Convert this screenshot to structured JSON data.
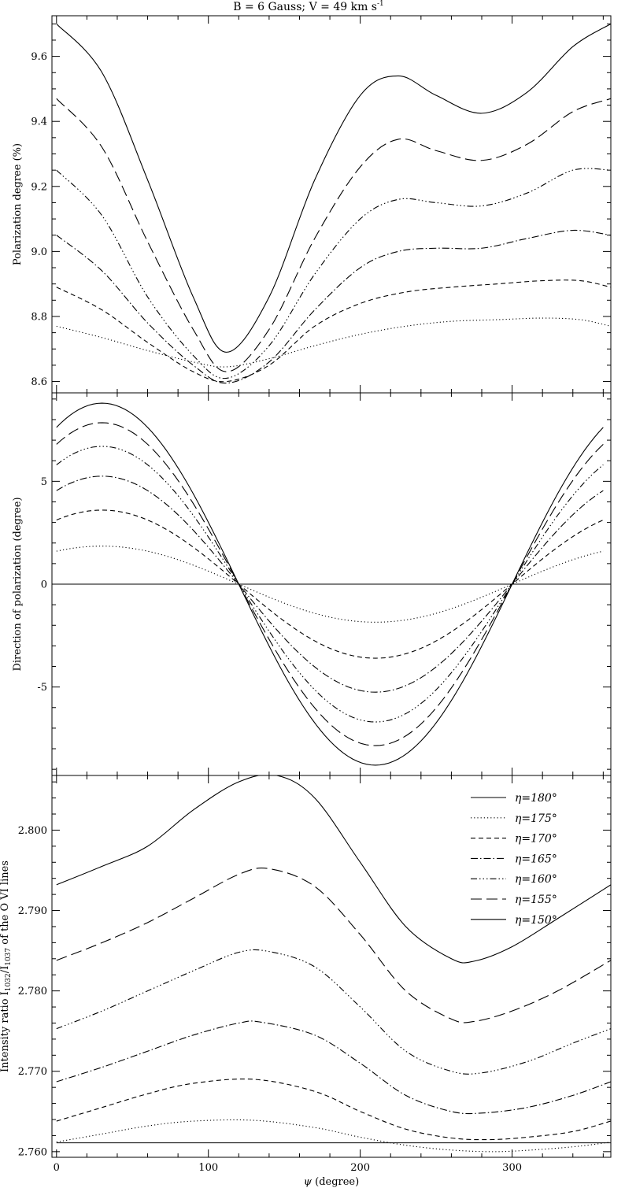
{
  "title": "B = 6 Gauss; V = 49 km s",
  "title_sup": "-1",
  "chart_data": [
    {
      "type": "line",
      "panel": "top",
      "ylabel": "Polarization degree (%)",
      "xlabel": "",
      "xlim": [
        -3,
        365
      ],
      "ylim": [
        8.565,
        9.725
      ],
      "xticks": [
        0,
        100,
        200,
        300
      ],
      "yticks": [
        8.6,
        8.8,
        9.0,
        9.2,
        9.4,
        9.6
      ],
      "ytick_labels": [
        "8.6",
        "8.8",
        "9.0",
        "9.2",
        "9.4",
        "9.6"
      ],
      "series": [
        {
          "name": "η=150°",
          "style": "solid",
          "points": [
            [
              0,
              9.7
            ],
            [
              30,
              9.55
            ],
            [
              60,
              9.22
            ],
            [
              90,
              8.86
            ],
            [
              112,
              8.69
            ],
            [
              140,
              8.86
            ],
            [
              170,
              9.22
            ],
            [
              200,
              9.48
            ],
            [
              225,
              9.54
            ],
            [
              250,
              9.48
            ],
            [
              280,
              9.425
            ],
            [
              310,
              9.49
            ],
            [
              340,
              9.63
            ],
            [
              365,
              9.7
            ]
          ]
        },
        {
          "name": "η=155°",
          "style": "long-dash",
          "points": [
            [
              0,
              9.47
            ],
            [
              30,
              9.32
            ],
            [
              60,
              9.03
            ],
            [
              90,
              8.76
            ],
            [
              112,
              8.63
            ],
            [
              140,
              8.76
            ],
            [
              170,
              9.04
            ],
            [
              200,
              9.26
            ],
            [
              225,
              9.345
            ],
            [
              250,
              9.31
            ],
            [
              280,
              9.28
            ],
            [
              310,
              9.33
            ],
            [
              340,
              9.43
            ],
            [
              365,
              9.47
            ]
          ]
        },
        {
          "name": "η=160°",
          "style": "dash-dot-dot-dot",
          "points": [
            [
              0,
              9.25
            ],
            [
              30,
              9.11
            ],
            [
              60,
              8.86
            ],
            [
              90,
              8.68
            ],
            [
              112,
              8.61
            ],
            [
              140,
              8.71
            ],
            [
              170,
              8.93
            ],
            [
              200,
              9.1
            ],
            [
              225,
              9.16
            ],
            [
              250,
              9.15
            ],
            [
              280,
              9.14
            ],
            [
              310,
              9.18
            ],
            [
              340,
              9.25
            ],
            [
              365,
              9.25
            ]
          ]
        },
        {
          "name": "η=165°",
          "style": "dash-dot",
          "points": [
            [
              0,
              9.05
            ],
            [
              30,
              8.94
            ],
            [
              60,
              8.78
            ],
            [
              90,
              8.65
            ],
            [
              112,
              8.595
            ],
            [
              140,
              8.66
            ],
            [
              170,
              8.82
            ],
            [
              200,
              8.95
            ],
            [
              225,
              9.0
            ],
            [
              250,
              9.01
            ],
            [
              280,
              9.01
            ],
            [
              310,
              9.04
            ],
            [
              340,
              9.065
            ],
            [
              365,
              9.05
            ]
          ]
        },
        {
          "name": "η=170°",
          "style": "short-dash",
          "points": [
            [
              0,
              8.89
            ],
            [
              30,
              8.82
            ],
            [
              60,
              8.72
            ],
            [
              90,
              8.63
            ],
            [
              112,
              8.6
            ],
            [
              140,
              8.65
            ],
            [
              170,
              8.77
            ],
            [
              200,
              8.84
            ],
            [
              230,
              8.875
            ],
            [
              260,
              8.89
            ],
            [
              290,
              8.9
            ],
            [
              320,
              8.91
            ],
            [
              345,
              8.91
            ],
            [
              365,
              8.89
            ]
          ]
        },
        {
          "name": "η=175°",
          "style": "dotted",
          "points": [
            [
              0,
              8.77
            ],
            [
              30,
              8.735
            ],
            [
              60,
              8.695
            ],
            [
              90,
              8.66
            ],
            [
              112,
              8.645
            ],
            [
              140,
              8.67
            ],
            [
              170,
              8.71
            ],
            [
              200,
              8.745
            ],
            [
              230,
              8.77
            ],
            [
              260,
              8.785
            ],
            [
              290,
              8.79
            ],
            [
              320,
              8.795
            ],
            [
              345,
              8.79
            ],
            [
              365,
              8.77
            ]
          ]
        }
      ]
    },
    {
      "type": "line",
      "panel": "middle",
      "ylabel": "Direction of polarization (degree)",
      "xlabel": "",
      "xlim": [
        -3,
        365
      ],
      "ylim": [
        -9.3,
        9.3
      ],
      "xticks": [
        0,
        100,
        200,
        300
      ],
      "yticks": [
        -5,
        0,
        5
      ],
      "ytick_labels": [
        "-5",
        "0",
        "5"
      ],
      "series": [
        {
          "name": "η=150°",
          "amplitude": 8.8,
          "zero_crossings": [
            120,
            300
          ]
        },
        {
          "name": "η=155°",
          "amplitude": 7.85,
          "zero_crossings": [
            120,
            300
          ]
        },
        {
          "name": "η=160°",
          "amplitude": 6.7,
          "zero_crossings": [
            120,
            300
          ]
        },
        {
          "name": "η=165°",
          "amplitude": 5.25,
          "zero_crossings": [
            120,
            300
          ]
        },
        {
          "name": "η=170°",
          "amplitude": 3.6,
          "zero_crossings": [
            120,
            300
          ]
        },
        {
          "name": "η=175°",
          "amplitude": 1.85,
          "zero_crossings": [
            120,
            300
          ]
        },
        {
          "name": "η=180°",
          "amplitude": 0,
          "zero_crossings": []
        }
      ]
    },
    {
      "type": "line",
      "panel": "bottom",
      "ylabel_parts": [
        "Intensity ratio I",
        "1032",
        "/I",
        "1037",
        " of the O VI lines"
      ],
      "xlabel_parts": [
        "ψ",
        " (degree)"
      ],
      "xlim": [
        -3,
        365
      ],
      "ylim": [
        2.7593,
        2.8068
      ],
      "xticks": [
        0,
        100,
        200,
        300
      ],
      "xtick_labels": [
        "0",
        "100",
        "200",
        "300"
      ],
      "yticks": [
        2.76,
        2.77,
        2.78,
        2.79,
        2.8
      ],
      "ytick_labels": [
        "2.760",
        "2.770",
        "2.780",
        "2.790",
        "2.800"
      ],
      "legend_position": "top-right",
      "series": [
        {
          "name": "η=150°",
          "style": "solid",
          "points": [
            [
              0,
              2.7932
            ],
            [
              30,
              2.7955
            ],
            [
              60,
              2.798
            ],
            [
              90,
              2.8025
            ],
            [
              120,
              2.806
            ],
            [
              145,
              2.8068
            ],
            [
              170,
              2.804
            ],
            [
              200,
              2.796
            ],
            [
              230,
              2.788
            ],
            [
              260,
              2.784
            ],
            [
              275,
              2.7837
            ],
            [
              300,
              2.7855
            ],
            [
              330,
              2.789
            ],
            [
              365,
              2.7932
            ]
          ]
        },
        {
          "name": "η=155°",
          "style": "long-dash",
          "points": [
            [
              0,
              2.7838
            ],
            [
              30,
              2.786
            ],
            [
              60,
              2.7885
            ],
            [
              90,
              2.7915
            ],
            [
              120,
              2.7945
            ],
            [
              140,
              2.7952
            ],
            [
              170,
              2.793
            ],
            [
              200,
              2.787
            ],
            [
              230,
              2.78
            ],
            [
              260,
              2.7765
            ],
            [
              275,
              2.7762
            ],
            [
              300,
              2.7775
            ],
            [
              330,
              2.78
            ],
            [
              365,
              2.7838
            ]
          ]
        },
        {
          "name": "η=160°",
          "style": "dash-dot-dot-dot",
          "points": [
            [
              0,
              2.7753
            ],
            [
              30,
              2.7775
            ],
            [
              60,
              2.78
            ],
            [
              90,
              2.7825
            ],
            [
              120,
              2.7848
            ],
            [
              140,
              2.7849
            ],
            [
              170,
              2.783
            ],
            [
              200,
              2.778
            ],
            [
              230,
              2.7725
            ],
            [
              260,
              2.77
            ],
            [
              280,
              2.7698
            ],
            [
              310,
              2.7712
            ],
            [
              340,
              2.7735
            ],
            [
              365,
              2.7753
            ]
          ]
        },
        {
          "name": "η=165°",
          "style": "dash-dot",
          "points": [
            [
              0,
              2.7687
            ],
            [
              30,
              2.7705
            ],
            [
              60,
              2.7725
            ],
            [
              90,
              2.7745
            ],
            [
              120,
              2.776
            ],
            [
              135,
              2.7761
            ],
            [
              170,
              2.7745
            ],
            [
              200,
              2.771
            ],
            [
              230,
              2.767
            ],
            [
              260,
              2.765
            ],
            [
              280,
              2.7648
            ],
            [
              310,
              2.7655
            ],
            [
              340,
              2.767
            ],
            [
              365,
              2.7687
            ]
          ]
        },
        {
          "name": "η=170°",
          "style": "short-dash",
          "points": [
            [
              0,
              2.7638
            ],
            [
              30,
              2.7655
            ],
            [
              60,
              2.7672
            ],
            [
              90,
              2.7685
            ],
            [
              130,
              2.769
            ],
            [
              170,
              2.7675
            ],
            [
              200,
              2.765
            ],
            [
              230,
              2.7628
            ],
            [
              260,
              2.7617
            ],
            [
              285,
              2.7615
            ],
            [
              310,
              2.7618
            ],
            [
              340,
              2.7625
            ],
            [
              365,
              2.7638
            ]
          ]
        },
        {
          "name": "η=175°",
          "style": "dotted",
          "points": [
            [
              0,
              2.7612
            ],
            [
              30,
              2.7622
            ],
            [
              60,
              2.7632
            ],
            [
              90,
              2.7638
            ],
            [
              130,
              2.7639
            ],
            [
              170,
              2.763
            ],
            [
              200,
              2.7618
            ],
            [
              230,
              2.7608
            ],
            [
              260,
              2.7602
            ],
            [
              290,
              2.76
            ],
            [
              320,
              2.7603
            ],
            [
              345,
              2.7607
            ],
            [
              365,
              2.7612
            ]
          ]
        },
        {
          "name": "η=180°",
          "style": "solid",
          "points": [
            [
              0,
              2.7611
            ],
            [
              365,
              2.7611
            ]
          ]
        }
      ],
      "legend": [
        {
          "label": "η=180°",
          "style": "solid"
        },
        {
          "label": "η=175°",
          "style": "dotted"
        },
        {
          "label": "η=170°",
          "style": "short-dash"
        },
        {
          "label": "η=165°",
          "style": "dash-dot"
        },
        {
          "label": "η=160°",
          "style": "dash-dot-dot-dot"
        },
        {
          "label": "η=155°",
          "style": "long-dash"
        },
        {
          "label": "η=150°",
          "style": "solid"
        }
      ]
    }
  ]
}
